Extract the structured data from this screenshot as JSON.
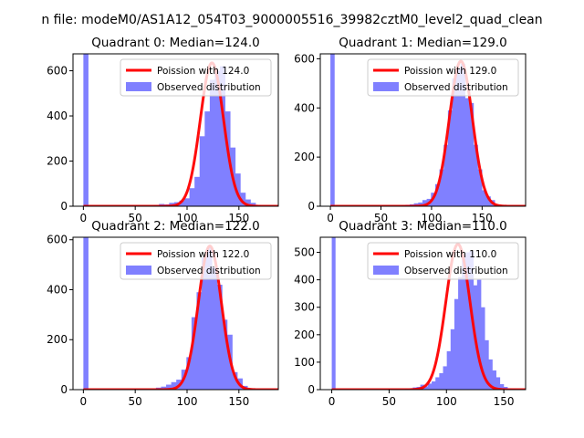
{
  "figure": {
    "suptitle": "n file: modeM0/AS1A12_054T03_9000005516_39982cztM0_level2_quad_clean"
  },
  "colors": {
    "poisson": "#ff0000",
    "observed": "#8080ff",
    "axis": "#000000",
    "legend_border": "#cccccc"
  },
  "chart_data": [
    {
      "type": "bar",
      "title": "Quadrant 0: Median=124.0",
      "median": 124.0,
      "xlim": [
        -10,
        188
      ],
      "ylim": [
        0,
        675
      ],
      "xticks": [
        0,
        50,
        100,
        150
      ],
      "yticks": [
        0,
        200,
        400,
        600
      ],
      "legend": [
        "Poission with 124.0",
        "Observed distribution"
      ],
      "legend_position": "top-right",
      "poisson_peak": 635,
      "poisson_sigma": 11.2,
      "spike": {
        "x0": 0,
        "x1": 4.9,
        "value": 675
      },
      "bin_width": 4.9,
      "bin_start": 68,
      "observed": [
        5,
        10,
        8,
        15,
        18,
        25,
        35,
        80,
        130,
        310,
        420,
        560,
        600,
        620,
        420,
        260,
        145,
        60,
        30,
        15,
        5
      ]
    },
    {
      "type": "bar",
      "title": "Quadrant 1: Median=129.0",
      "median": 129.0,
      "xlim": [
        -10,
        193
      ],
      "ylim": [
        0,
        620
      ],
      "xticks": [
        0,
        50,
        100,
        150
      ],
      "yticks": [
        0,
        200,
        400,
        600
      ],
      "legend": [
        "Poission with 129.0",
        "Observed distribution"
      ],
      "legend_position": "top-right",
      "poisson_peak": 590,
      "poisson_sigma": 11.4,
      "spike": {
        "x0": 0,
        "x1": 4.2,
        "value": 620
      },
      "bin_width": 4.2,
      "bin_start": 70,
      "observed": [
        4,
        6,
        8,
        12,
        15,
        25,
        30,
        55,
        90,
        150,
        250,
        390,
        520,
        560,
        580,
        440,
        420,
        250,
        150,
        65,
        40,
        25,
        8
      ]
    },
    {
      "type": "bar",
      "title": "Quadrant 2: Median=122.0",
      "median": 122.0,
      "xlim": [
        -10,
        188
      ],
      "ylim": [
        0,
        610
      ],
      "xticks": [
        0,
        50,
        100,
        150
      ],
      "yticks": [
        0,
        200,
        400,
        600
      ],
      "legend": [
        "Poission with 122.0",
        "Observed distribution"
      ],
      "legend_position": "top-right",
      "poisson_peak": 575,
      "poisson_sigma": 11.1,
      "spike": {
        "x0": 0,
        "x1": 4.9,
        "value": 610
      },
      "bin_width": 4.9,
      "bin_start": 70,
      "observed": [
        8,
        12,
        20,
        30,
        40,
        80,
        130,
        290,
        390,
        530,
        570,
        490,
        420,
        280,
        220,
        70,
        45,
        15,
        5
      ]
    },
    {
      "type": "bar",
      "title": "Quadrant 3: Median=110.0",
      "median": 110.0,
      "xlim": [
        -10,
        169
      ],
      "ylim": [
        0,
        555
      ],
      "xticks": [
        0,
        50,
        100,
        150
      ],
      "yticks": [
        0,
        100,
        200,
        300,
        400,
        500
      ],
      "legend": [
        "Poission with 110.0",
        "Observed distribution"
      ],
      "legend_position": "top-right",
      "poisson_peak": 530,
      "poisson_sigma": 10.5,
      "spike": {
        "x0": 0,
        "x1": 3.3,
        "value": 555
      },
      "bin_width": 3.3,
      "bin_start": 64,
      "observed": [
        3,
        5,
        8,
        10,
        18,
        12,
        22,
        30,
        45,
        60,
        85,
        140,
        220,
        330,
        410,
        490,
        500,
        505,
        380,
        400,
        300,
        180,
        110,
        70,
        45,
        20,
        10,
        5,
        3
      ]
    }
  ]
}
